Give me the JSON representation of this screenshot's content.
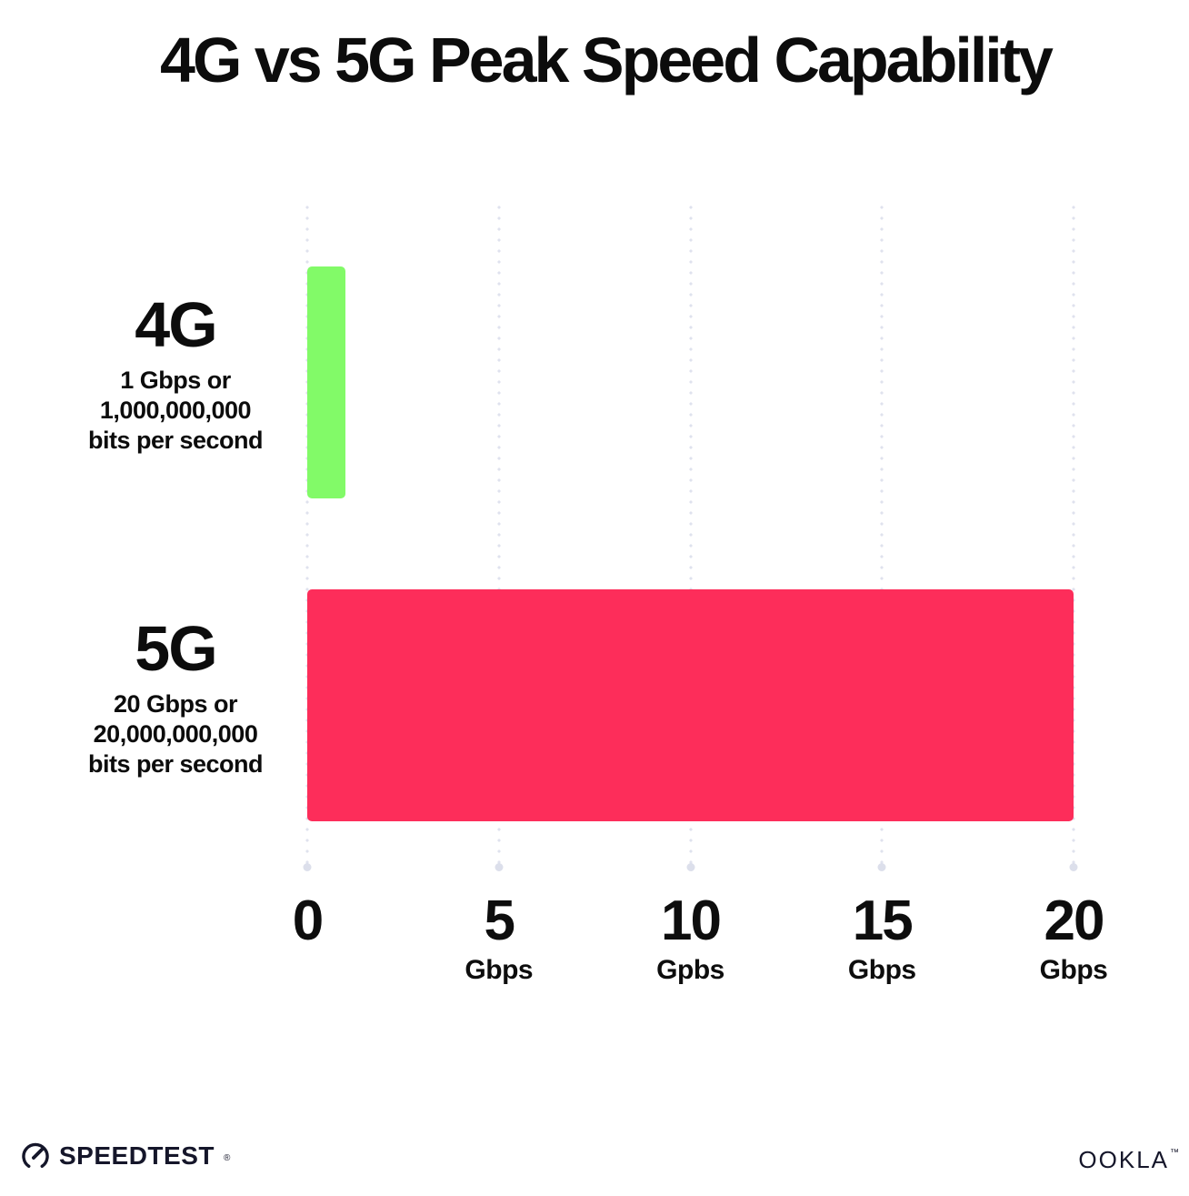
{
  "title": "4G vs 5G Peak Speed Capability",
  "chart_data": {
    "type": "bar",
    "orientation": "horizontal",
    "title": "4G vs 5G Peak Speed Capability",
    "categories": [
      "4G",
      "5G"
    ],
    "values": [
      1,
      20
    ],
    "value_unit": "Gbps",
    "xlim": [
      0,
      20
    ],
    "grid": "dotted vertical gridlines at each x tick, legend none",
    "rows": [
      {
        "label": "4G",
        "value_gbps": 1,
        "desc_lines": [
          "1 Gbps or",
          "1,000,000,000",
          "bits per second"
        ],
        "color": "#82fa68"
      },
      {
        "label": "5G",
        "value_gbps": 20,
        "desc_lines": [
          "20 Gbps or",
          "20,000,000,000",
          "bits per second"
        ],
        "color": "#fd2d5a"
      }
    ],
    "x_ticks": [
      {
        "value": 0,
        "label": "0",
        "unit": ""
      },
      {
        "value": 5,
        "label": "5",
        "unit": "Gbps"
      },
      {
        "value": 10,
        "label": "10",
        "unit": "Gpbs"
      },
      {
        "value": 15,
        "label": "15",
        "unit": "Gbps"
      },
      {
        "value": 20,
        "label": "20",
        "unit": "Gbps"
      }
    ]
  },
  "colors": {
    "background": "#ffffff",
    "text": "#0c0c0c",
    "grid_dot": "#dfe2ee",
    "bar_4g": "#82fa68",
    "bar_5g": "#fd2d5a"
  },
  "footer": {
    "speedtest": {
      "label": "SPEEDTEST",
      "mark": "®",
      "icon": "speedometer-gauge"
    },
    "ookla": {
      "label": "OOKLA",
      "mark": "™"
    }
  }
}
